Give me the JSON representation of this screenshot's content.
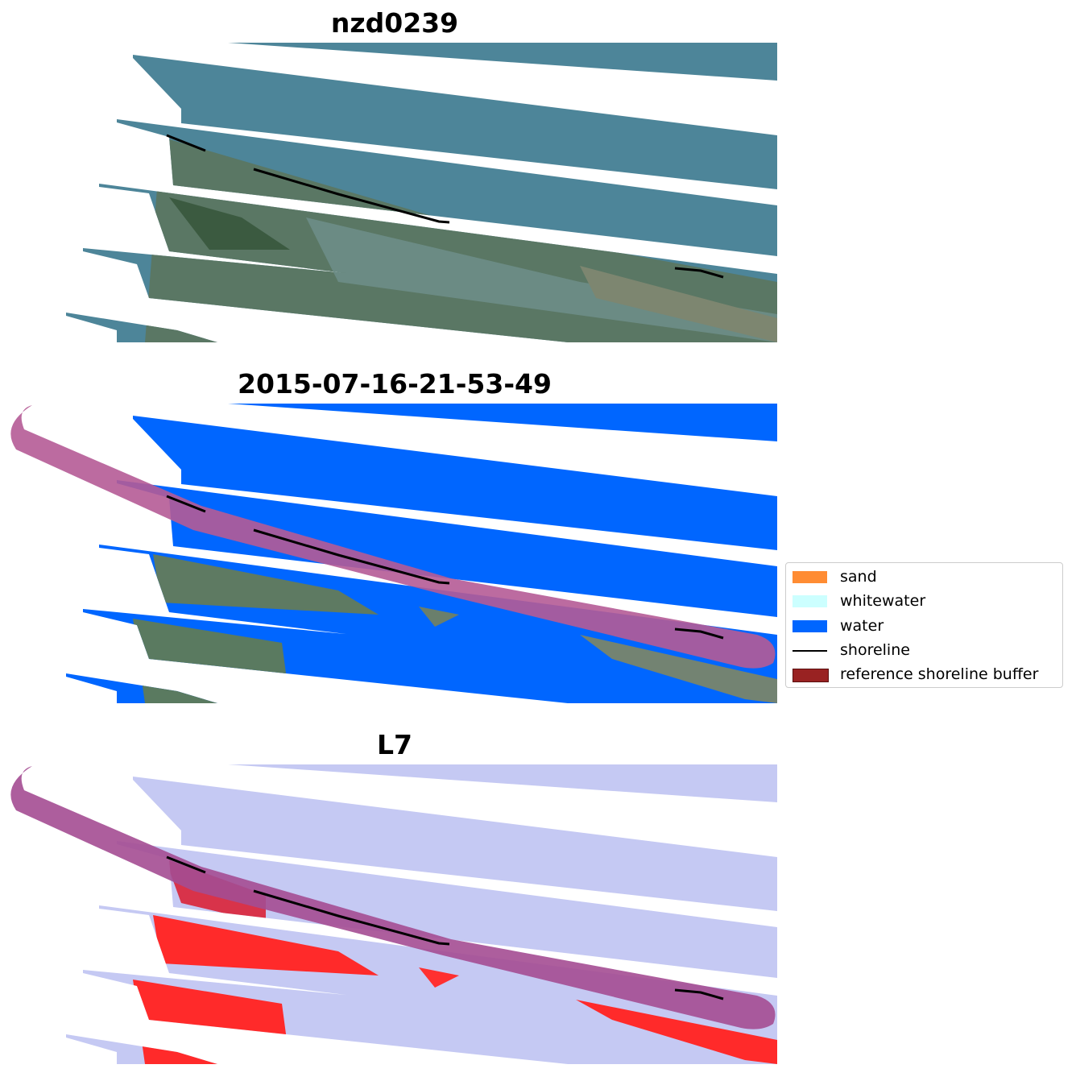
{
  "panels": [
    {
      "title": "nzd0239",
      "kind": "rgb"
    },
    {
      "title": "2015-07-16-21-53-49",
      "kind": "classification"
    },
    {
      "title": "L7",
      "kind": "mndwi"
    }
  ],
  "legend": {
    "items": [
      {
        "label": "sand",
        "color": "#ff8c33",
        "icon": "filled-square"
      },
      {
        "label": "whitewater",
        "color": "#ccffff",
        "icon": "filled-square"
      },
      {
        "label": "water",
        "color": "#0066ff",
        "icon": "filled-square"
      },
      {
        "label": "shoreline",
        "color": "#000000",
        "icon": "line"
      },
      {
        "label": "reference shoreline buffer",
        "color": "#992222",
        "icon": "filled-square"
      }
    ]
  },
  "colors": {
    "sea_rgb": "#4a8294",
    "land_rgb": "#6a7a66",
    "water_class": "#0066ff",
    "buffer": "#b55b96",
    "mndwi_water": "#bfc4f2",
    "mndwi_land": "#ff2020"
  }
}
